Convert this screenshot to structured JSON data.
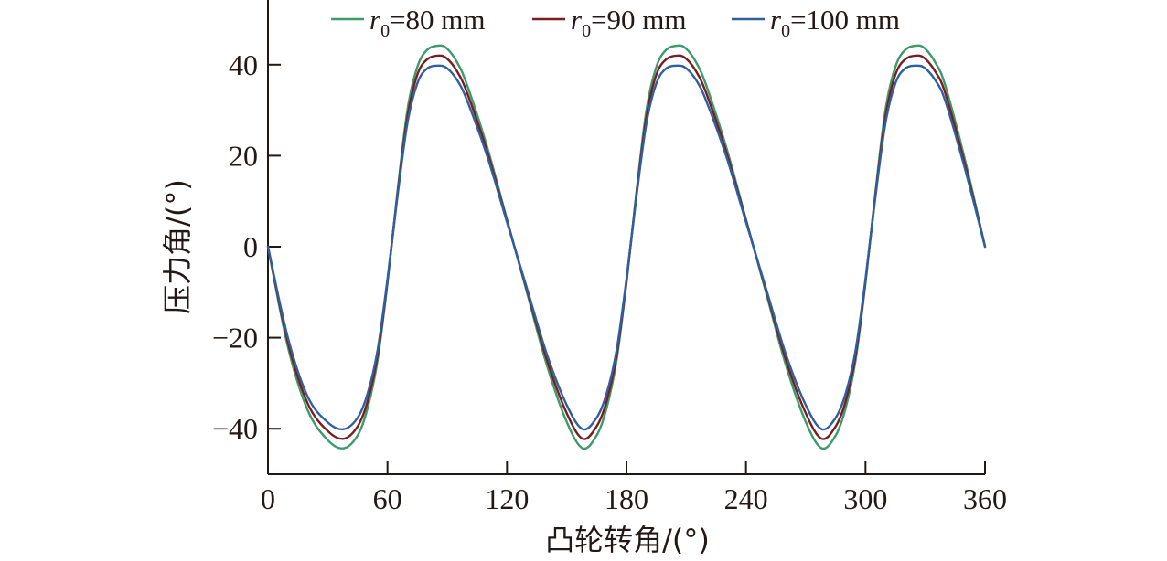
{
  "chart_data": {
    "type": "line",
    "title": "",
    "xlabel": "凸轮转角/(°)",
    "ylabel": "压力角/(°)",
    "xlim": [
      0,
      360
    ],
    "ylim": [
      -50,
      50
    ],
    "x_ticks": [
      0,
      60,
      120,
      180,
      240,
      300,
      360
    ],
    "y_ticks": [
      -40,
      -20,
      0,
      20,
      40
    ],
    "x_tick_labels": [
      "0",
      "60",
      "120",
      "180",
      "240",
      "300",
      "360"
    ],
    "y_tick_labels": [
      "−40",
      "−20",
      "0",
      "20",
      "40"
    ],
    "grid": false,
    "legend_position": "top",
    "series": [
      {
        "name": "r0=80 mm",
        "legend_var": "r",
        "legend_sub": "0",
        "legend_rest": "=80 mm",
        "color": "#3d9a6a",
        "x": [
          0,
          10,
          20,
          30,
          38,
          45,
          50,
          55,
          60,
          65,
          70,
          75,
          80,
          86,
          90,
          95,
          100,
          110,
          120,
          130,
          140,
          150,
          158,
          165,
          170,
          175,
          180,
          185,
          190,
          195,
          200,
          206,
          210,
          215,
          220,
          230,
          240,
          250,
          260,
          270,
          278,
          285,
          290,
          295,
          300,
          305,
          310,
          315,
          320,
          326,
          330,
          335,
          340,
          350,
          360
        ],
        "y": [
          0,
          -22,
          -36,
          -42.5,
          -44.3,
          -41.5,
          -35.5,
          -25,
          -8,
          12,
          30,
          39.5,
          43.3,
          44.2,
          43.5,
          40.5,
          35.5,
          22,
          6,
          -10,
          -26,
          -38.5,
          -44.3,
          -41.5,
          -35.5,
          -25,
          -8,
          12,
          30,
          39.5,
          43.3,
          44.2,
          43.5,
          40.5,
          35.5,
          22,
          6,
          -10,
          -26,
          -38.5,
          -44.3,
          -41.5,
          -35.5,
          -25,
          -8,
          12,
          30,
          39.5,
          43.3,
          44.2,
          43.5,
          40.5,
          35.5,
          19,
          0
        ]
      },
      {
        "name": "r0=90 mm",
        "legend_var": "r",
        "legend_sub": "0",
        "legend_rest": "=90 mm",
        "color": "#7b1d1d",
        "x": [
          0,
          10,
          20,
          30,
          38,
          45,
          50,
          55,
          60,
          65,
          70,
          75,
          80,
          86,
          90,
          95,
          100,
          110,
          120,
          130,
          140,
          150,
          158,
          165,
          170,
          175,
          180,
          185,
          190,
          195,
          200,
          206,
          210,
          215,
          220,
          230,
          240,
          250,
          260,
          270,
          278,
          285,
          290,
          295,
          300,
          305,
          310,
          315,
          320,
          326,
          330,
          335,
          340,
          350,
          360
        ],
        "y": [
          0,
          -21,
          -34.5,
          -40.5,
          -42.2,
          -39.5,
          -34,
          -24,
          -7.5,
          11.5,
          28.5,
          37.8,
          41.2,
          42,
          41.3,
          38.5,
          33.8,
          21,
          5.7,
          -9.5,
          -24.8,
          -36.6,
          -42.2,
          -39.5,
          -34,
          -24,
          -7.5,
          11.5,
          28.5,
          37.8,
          41.2,
          42,
          41.3,
          38.5,
          33.8,
          21,
          5.7,
          -9.5,
          -24.8,
          -36.6,
          -42.2,
          -39.5,
          -34,
          -24,
          -7.5,
          11.5,
          28.5,
          37.8,
          41.2,
          42,
          41.3,
          38.5,
          33.8,
          18,
          0
        ]
      },
      {
        "name": "r0=100 mm",
        "legend_var": "r",
        "legend_sub": "0",
        "legend_rest": "=100 mm",
        "color": "#2f5fa3",
        "x": [
          0,
          10,
          20,
          30,
          38,
          45,
          50,
          55,
          60,
          65,
          70,
          75,
          80,
          86,
          90,
          95,
          100,
          110,
          120,
          130,
          140,
          150,
          158,
          165,
          170,
          175,
          180,
          185,
          190,
          195,
          200,
          206,
          210,
          215,
          220,
          230,
          240,
          250,
          260,
          270,
          278,
          285,
          290,
          295,
          300,
          305,
          310,
          315,
          320,
          326,
          330,
          335,
          340,
          350,
          360
        ],
        "y": [
          0,
          -20,
          -33,
          -38.6,
          -40.1,
          -37.6,
          -32.3,
          -22.8,
          -7.1,
          11,
          27.1,
          35.9,
          39.2,
          39.8,
          39.2,
          36.6,
          32.1,
          20,
          5.4,
          -9.1,
          -23.6,
          -34.8,
          -40.1,
          -37.6,
          -32.3,
          -22.8,
          -7.1,
          11,
          27.1,
          35.9,
          39.2,
          39.8,
          39.2,
          36.6,
          32.1,
          20,
          5.4,
          -9.1,
          -23.6,
          -34.8,
          -40.1,
          -37.6,
          -32.3,
          -22.8,
          -7.1,
          11,
          27.1,
          35.9,
          39.2,
          39.8,
          39.2,
          36.6,
          32.1,
          17,
          0
        ]
      }
    ]
  }
}
